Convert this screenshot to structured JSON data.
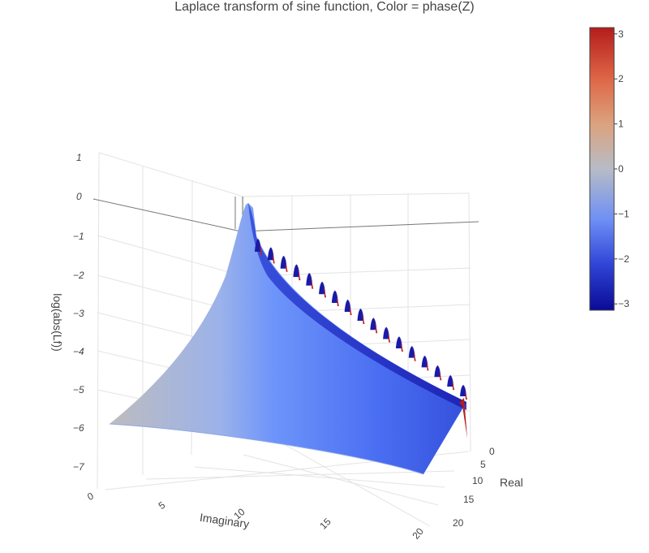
{
  "chart_data": {
    "type": "surface3d",
    "title": "Laplace transform of sine function, Color = phase(Z)",
    "axes": {
      "z": {
        "label": "log(abs(Lf))",
        "ticks": [
          "1",
          "0",
          "−1",
          "−2",
          "−3",
          "−4",
          "−5",
          "−6",
          "−7"
        ],
        "range": [
          -7.5,
          1
        ]
      },
      "imaginary": {
        "label": "Imaginary",
        "ticks": [
          "0",
          "5",
          "10",
          "15",
          "20"
        ],
        "range": [
          0,
          20
        ]
      },
      "real": {
        "label": "Real",
        "ticks": [
          "0",
          "5",
          "10",
          "15",
          "20"
        ],
        "range": [
          0,
          20
        ]
      }
    },
    "colorbar": {
      "title": "",
      "range": [
        -3.14,
        3.14
      ],
      "ticks": [
        "3",
        "2",
        "1",
        "0",
        "−1",
        "−2",
        "−3"
      ],
      "tick_values": [
        3,
        2,
        1,
        0,
        -1,
        -2,
        -3
      ],
      "colorscale": [
        "#0a0a96",
        "#2c3fd8",
        "#5f86f5",
        "#b4bccb",
        "#d9a98a",
        "#df7b4c",
        "#b41c1c"
      ]
    },
    "surface": {
      "description_values": {
        "peak_log_abs": -0.2,
        "ridge_min_log_abs_at_real_20": -5.2,
        "edge_log_abs_at_imag_0": -6.0,
        "corner_log_abs_far": -7.0
      },
      "spike_count": 17
    }
  }
}
